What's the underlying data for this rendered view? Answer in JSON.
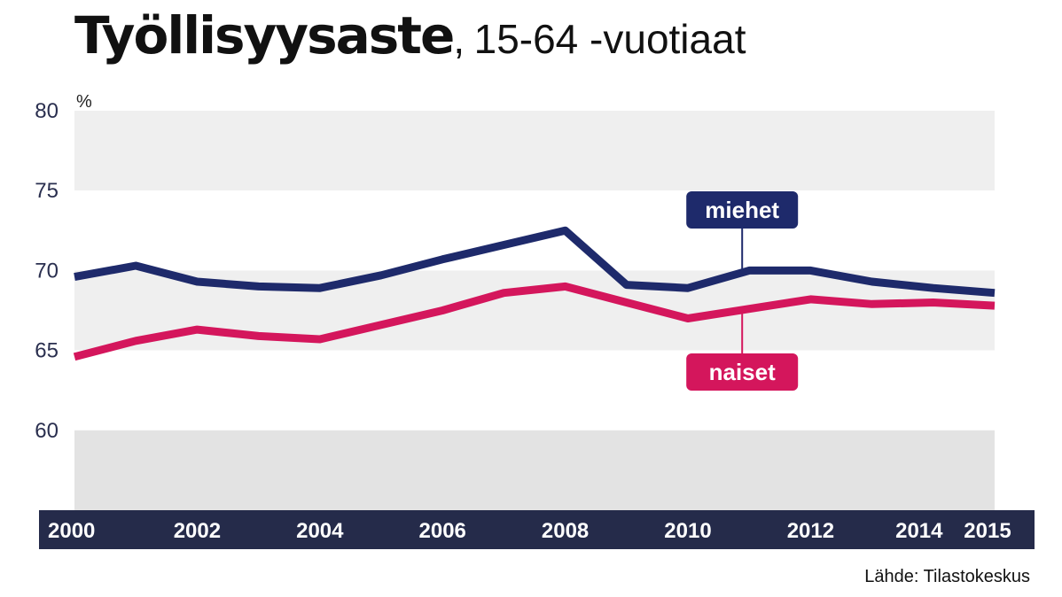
{
  "title": "Työllisyysaste",
  "title_separator": ",",
  "subtitle": "15-64 -vuotiaat",
  "source": "Lähde: Tilastokeskus",
  "colors": {
    "miehet": "#1e2a6b",
    "naiset": "#d4165c",
    "axis_bar": "#252b4a",
    "band_light": "#efefef",
    "band_mid": "#e3e3e3"
  },
  "chart_data": {
    "type": "line",
    "ylabel": "%",
    "ylim": [
      55,
      80
    ],
    "yticks": [
      60,
      65,
      70,
      75,
      80
    ],
    "xlim": [
      2000,
      2015
    ],
    "xtick_labels": [
      "2000",
      "2002",
      "2004",
      "2006",
      "2008",
      "2010",
      "2012",
      "2014",
      "2015"
    ],
    "x": [
      2000,
      2001,
      2002,
      2003,
      2004,
      2005,
      2006,
      2007,
      2008,
      2009,
      2010,
      2011,
      2012,
      2013,
      2014,
      2015
    ],
    "series": [
      {
        "name": "miehet",
        "values": [
          69.6,
          70.3,
          69.3,
          69.0,
          68.9,
          69.7,
          70.7,
          71.6,
          72.5,
          69.1,
          68.9,
          70.0,
          70.0,
          69.3,
          68.9,
          68.6
        ]
      },
      {
        "name": "naiset",
        "values": [
          64.6,
          65.6,
          66.3,
          65.9,
          65.7,
          66.6,
          67.5,
          68.6,
          69.0,
          68.0,
          67.0,
          67.6,
          68.2,
          67.9,
          68.0,
          67.8
        ]
      }
    ],
    "legend": "inline labels"
  }
}
